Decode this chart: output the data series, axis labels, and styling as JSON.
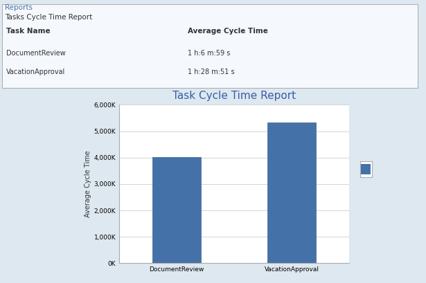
{
  "title": "Task Cycle Time Report",
  "header_title": "Tasks Cycle Time Report",
  "page_title": "Reports",
  "categories": [
    "DocumentReview",
    "VacationApproval"
  ],
  "values": [
    4019,
    5331
  ],
  "table_data": [
    {
      "task": "DocumentReview",
      "avg_time": "1 h:6 m:59 s"
    },
    {
      "task": "VacationApproval",
      "avg_time": "1 h:28 m:51 s"
    }
  ],
  "bar_color": "#4472a8",
  "bar_edge_color": "#3a5f8a",
  "ylabel": "Average Cycle Time",
  "ylim": [
    0,
    6000
  ],
  "yticks": [
    0,
    1000,
    2000,
    3000,
    4000,
    5000,
    6000
  ],
  "ytick_labels": [
    "0K",
    "1,000K",
    "2,000K",
    "3,000K",
    "4,000K",
    "5,000K",
    "6,000K"
  ],
  "title_color": "#3a5ca8",
  "title_fontsize": 11,
  "axis_label_fontsize": 7,
  "tick_fontsize": 6.5,
  "background_page": "#dde8f0",
  "background_chart": "#ffffff",
  "background_top_panel": "#f0f4f8",
  "header_bg": "#e8eef5",
  "table_header_bg": "#b8cce4",
  "grid_color": "#cccccc",
  "legend_color": "#4472a8",
  "reports_color": "#4472a8",
  "text_color": "#333333",
  "border_color": "#aaaaaa"
}
